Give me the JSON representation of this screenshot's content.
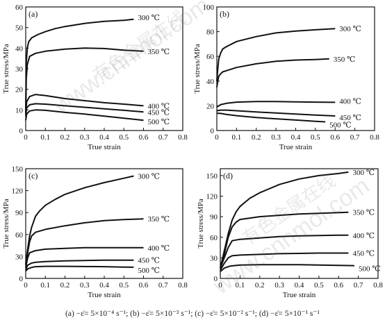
{
  "watermark": {
    "site": "www.cnnmol.com",
    "cn": "有色金属在线"
  },
  "figure_caption": "(a) −ε̇= 5×10⁻⁴ s⁻¹; (b) −ε̇= 5×10⁻³ s⁻¹; (c) −ε̇= 5×10⁻² s⁻¹; (d) −ε̇= 5×10⁻¹ s⁻¹",
  "chart_data": [
    {
      "type": "line",
      "panel_label": "(a)",
      "xlabel": "True strain",
      "ylabel": "True stress/MPa",
      "xlim": [
        0,
        0.8
      ],
      "ylim": [
        0,
        60
      ],
      "xticks": [
        "0",
        "0.1",
        "0.2",
        "0.3",
        "0.4",
        "0.5",
        "0.6",
        "0.7",
        "0.8"
      ],
      "yticks": [
        "0",
        "10",
        "20",
        "30",
        "40",
        "50",
        "60"
      ],
      "series": [
        {
          "name": "300 ℃",
          "x": [
            0,
            0.003,
            0.008,
            0.015,
            0.03,
            0.06,
            0.1,
            0.15,
            0.2,
            0.3,
            0.4,
            0.5,
            0.55
          ],
          "y": [
            10,
            33,
            40,
            43,
            45,
            46.5,
            48,
            49.5,
            50.5,
            52,
            53,
            53.5,
            54
          ]
        },
        {
          "name": "350 ℃",
          "x": [
            0,
            0.003,
            0.008,
            0.02,
            0.05,
            0.1,
            0.2,
            0.3,
            0.4,
            0.5,
            0.6
          ],
          "y": [
            8,
            25,
            32,
            36,
            37.5,
            38.5,
            39.5,
            40,
            39.8,
            39,
            38.5
          ]
        },
        {
          "name": "400 ℃",
          "x": [
            0,
            0.005,
            0.02,
            0.05,
            0.1,
            0.2,
            0.3,
            0.4,
            0.5,
            0.6
          ],
          "y": [
            8,
            14,
            16.5,
            17.5,
            17,
            15.5,
            14.5,
            13.5,
            12.8,
            12
          ]
        },
        {
          "name": "450 ℃",
          "x": [
            0,
            0.005,
            0.02,
            0.05,
            0.1,
            0.2,
            0.3,
            0.4,
            0.5,
            0.6
          ],
          "y": [
            7,
            11,
            12.5,
            13,
            12.8,
            12,
            11.3,
            10.5,
            9.8,
            9
          ]
        },
        {
          "name": "500 ℃",
          "x": [
            0,
            0.005,
            0.02,
            0.05,
            0.1,
            0.2,
            0.3,
            0.4,
            0.5,
            0.6
          ],
          "y": [
            5,
            8,
            9.5,
            10,
            9.8,
            8.8,
            8,
            7,
            6,
            5
          ]
        }
      ]
    },
    {
      "type": "line",
      "panel_label": "(b)",
      "xlabel": "True strain",
      "ylabel": "True stress/MPa",
      "xlim": [
        0,
        0.8
      ],
      "ylim": [
        0,
        100
      ],
      "xticks": [
        "0",
        "0.1",
        "0.2",
        "0.3",
        "0.4",
        "0.5",
        "0.6",
        "0.7",
        "0.8"
      ],
      "yticks": [
        "0",
        "20",
        "40",
        "60",
        "80",
        "100"
      ],
      "series": [
        {
          "name": "300 ℃",
          "x": [
            0,
            0.005,
            0.01,
            0.02,
            0.03,
            0.05,
            0.1,
            0.2,
            0.3,
            0.4,
            0.5,
            0.6
          ],
          "y": [
            40,
            50,
            58,
            63,
            66,
            68,
            72,
            76,
            79,
            80.5,
            81.5,
            82.5
          ]
        },
        {
          "name": "350 ℃",
          "x": [
            0,
            0.005,
            0.01,
            0.02,
            0.03,
            0.05,
            0.1,
            0.2,
            0.3,
            0.4,
            0.5,
            0.57
          ],
          "y": [
            35,
            40,
            44,
            46,
            47.5,
            48.5,
            51,
            54,
            56,
            57,
            57.5,
            58
          ]
        },
        {
          "name": "400 ℃",
          "x": [
            0,
            0.02,
            0.05,
            0.1,
            0.2,
            0.3,
            0.4,
            0.5,
            0.6
          ],
          "y": [
            19,
            21,
            22,
            23,
            23.5,
            23.5,
            23.2,
            23,
            22.8
          ]
        },
        {
          "name": "450 ℃",
          "x": [
            0,
            0.02,
            0.05,
            0.1,
            0.2,
            0.3,
            0.4,
            0.5,
            0.6
          ],
          "y": [
            16,
            16.5,
            16.5,
            16,
            15,
            14.2,
            13.3,
            12.5,
            11.8
          ]
        },
        {
          "name": "500 ℃",
          "x": [
            0,
            0.02,
            0.05,
            0.1,
            0.2,
            0.3,
            0.4,
            0.5,
            0.55
          ],
          "y": [
            14,
            13.8,
            13,
            12,
            10.5,
            9.5,
            8.5,
            7.5,
            7
          ]
        }
      ]
    },
    {
      "type": "line",
      "panel_label": "(c)",
      "xlabel": "True strain",
      "ylabel": "True stress/MPa",
      "xlim": [
        0,
        0.8
      ],
      "ylim": [
        0,
        150
      ],
      "xticks": [
        "0",
        "0.1",
        "0.2",
        "0.3",
        "0.4",
        "0.5",
        "0.6",
        "0.7",
        "0.8"
      ],
      "yticks": [
        "0",
        "30",
        "60",
        "90",
        "120",
        "150"
      ],
      "series": [
        {
          "name": "300 ℃",
          "x": [
            0,
            0.01,
            0.02,
            0.03,
            0.05,
            0.07,
            0.1,
            0.15,
            0.2,
            0.3,
            0.4,
            0.5,
            0.55
          ],
          "y": [
            20,
            40,
            58,
            70,
            85,
            92,
            100,
            108,
            115,
            124,
            131,
            137,
            140
          ]
        },
        {
          "name": "350 ℃",
          "x": [
            0,
            0.01,
            0.02,
            0.03,
            0.05,
            0.1,
            0.2,
            0.3,
            0.4,
            0.5,
            0.6
          ],
          "y": [
            18,
            35,
            50,
            58,
            63,
            67,
            72,
            76,
            79,
            80.5,
            81.5
          ]
        },
        {
          "name": "400 ℃",
          "x": [
            0,
            0.01,
            0.02,
            0.05,
            0.1,
            0.2,
            0.3,
            0.4,
            0.5,
            0.6
          ],
          "y": [
            15,
            28,
            35,
            38,
            40,
            41,
            42,
            42,
            42,
            42
          ]
        },
        {
          "name": "450 ℃",
          "x": [
            0,
            0.01,
            0.03,
            0.05,
            0.1,
            0.2,
            0.3,
            0.4,
            0.5,
            0.55
          ],
          "y": [
            12,
            18,
            21,
            22,
            23,
            24,
            24.5,
            25,
            25,
            25
          ]
        },
        {
          "name": "500 ℃",
          "x": [
            0,
            0.01,
            0.03,
            0.05,
            0.1,
            0.2,
            0.3,
            0.4,
            0.5,
            0.55
          ],
          "y": [
            10,
            13,
            15,
            16,
            16.5,
            16.5,
            16.2,
            16,
            15.5,
            15.3
          ]
        }
      ]
    },
    {
      "type": "line",
      "panel_label": "(d)",
      "xlabel": "True strain",
      "ylabel": "True stress/MPa",
      "xlim": [
        0,
        0.8
      ],
      "ylim": [
        0,
        160
      ],
      "xticks": [
        "0",
        "0.1",
        "0.2",
        "0.3",
        "0.4",
        "0.5",
        "0.6",
        "0.7",
        "0.8"
      ],
      "yticks": [
        "0",
        "30",
        "60",
        "90",
        "120",
        "150"
      ],
      "series": [
        {
          "name": "300 ℃",
          "x": [
            0,
            0.02,
            0.04,
            0.06,
            0.08,
            0.1,
            0.15,
            0.2,
            0.3,
            0.4,
            0.5,
            0.6,
            0.65
          ],
          "y": [
            15,
            40,
            65,
            85,
            97,
            105,
            117,
            125,
            137,
            145,
            150,
            153,
            155
          ]
        },
        {
          "name": "350 ℃",
          "x": [
            0,
            0.02,
            0.04,
            0.06,
            0.08,
            0.1,
            0.15,
            0.2,
            0.3,
            0.4,
            0.5,
            0.6,
            0.65
          ],
          "y": [
            15,
            35,
            60,
            75,
            82,
            86,
            88,
            90,
            92,
            94,
            95,
            96,
            96.5
          ]
        },
        {
          "name": "400 ℃",
          "x": [
            0,
            0.02,
            0.04,
            0.06,
            0.1,
            0.2,
            0.3,
            0.4,
            0.5,
            0.6,
            0.65
          ],
          "y": [
            15,
            30,
            45,
            55,
            57,
            59,
            61,
            62,
            62.5,
            63,
            63
          ]
        },
        {
          "name": "450 ℃",
          "x": [
            0,
            0.02,
            0.04,
            0.06,
            0.1,
            0.2,
            0.3,
            0.4,
            0.5,
            0.6,
            0.65
          ],
          "y": [
            12,
            22,
            30,
            33,
            34,
            35,
            36,
            36.5,
            37,
            37,
            37
          ]
        },
        {
          "name": "500 ℃",
          "x": [
            0,
            0.02,
            0.05,
            0.1,
            0.2,
            0.3,
            0.4,
            0.5,
            0.6,
            0.68
          ],
          "y": [
            10,
            15,
            18,
            19.5,
            20,
            20,
            20,
            19.5,
            19,
            18.5
          ]
        }
      ]
    }
  ]
}
